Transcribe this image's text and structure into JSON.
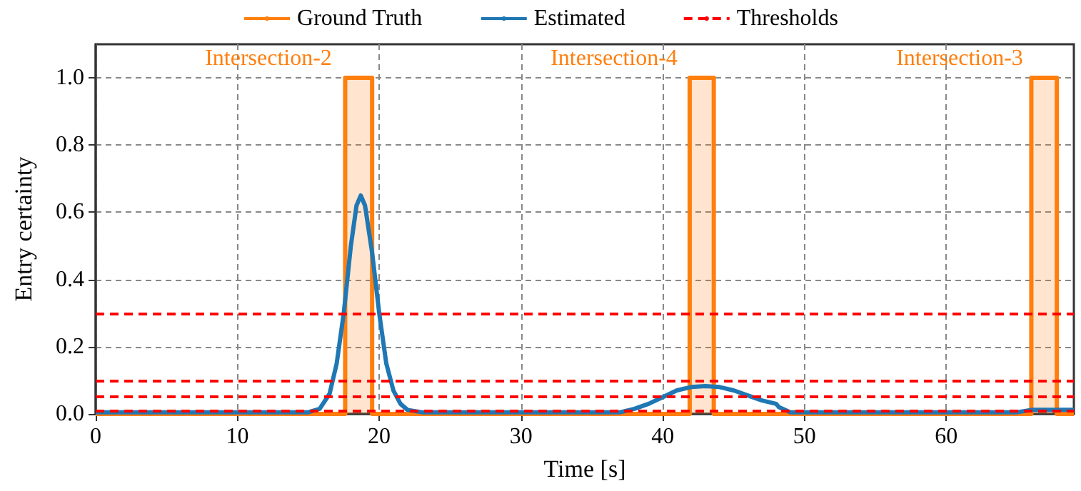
{
  "chart_data": {
    "type": "line",
    "xlabel": "Time [s]",
    "ylabel": "Entry certainty",
    "xlim": [
      0,
      69
    ],
    "xticks": [
      0,
      10,
      20,
      30,
      40,
      50,
      60
    ],
    "ylim": [
      0,
      1.1
    ],
    "yticks": [
      {
        "value": 0,
        "label": "0.0"
      },
      {
        "value": 0.2,
        "label": "0.2"
      },
      {
        "value": 0.4,
        "label": "0.4"
      },
      {
        "value": 0.6,
        "label": "0.6"
      },
      {
        "value": 0.8,
        "label": "0.8"
      },
      {
        "value": 1,
        "label": "1.0"
      }
    ],
    "grid": true,
    "legend": "top",
    "marker": "none",
    "series": [
      {
        "name": "Ground Truth",
        "type": "area",
        "color": "#ff7f0e",
        "x": [
          0,
          17.6,
          17.6,
          19.5,
          19.5,
          41.9,
          41.9,
          43.6,
          43.6,
          66.0,
          66.0,
          67.8,
          67.8,
          69
        ],
        "values": [
          0,
          0,
          1,
          1,
          0,
          0,
          1,
          1,
          0,
          0,
          1,
          1,
          0,
          0
        ]
      },
      {
        "name": "Estimated",
        "color": "#1f77b4",
        "x": [
          0,
          15,
          15.8,
          16.5,
          17,
          17.5,
          18,
          18.4,
          18.7,
          19,
          19.5,
          20,
          20.5,
          21,
          21.5,
          22,
          23,
          37,
          38,
          39,
          40,
          41,
          42,
          43,
          44,
          45,
          46,
          47,
          48,
          48.2,
          49,
          65,
          66,
          69
        ],
        "values": [
          0.005,
          0.005,
          0.015,
          0.06,
          0.15,
          0.3,
          0.5,
          0.62,
          0.65,
          0.62,
          0.48,
          0.3,
          0.15,
          0.07,
          0.03,
          0.012,
          0.005,
          0.005,
          0.015,
          0.03,
          0.05,
          0.07,
          0.08,
          0.083,
          0.08,
          0.07,
          0.055,
          0.04,
          0.03,
          0.02,
          0.005,
          0.005,
          0.012,
          0.012
        ]
      }
    ],
    "ref_lines": [
      {
        "axis": "y",
        "value": 0.3,
        "label": "Thresholds",
        "color": "#ff0000",
        "line_style": "dashed"
      },
      {
        "axis": "y",
        "value": 0.1,
        "color": "#ff0000",
        "line_style": "dashed"
      },
      {
        "axis": "y",
        "value": 0.05,
        "color": "#ff0000",
        "line_style": "dashed"
      },
      {
        "axis": "y",
        "value": 0.01,
        "color": "#ff0000",
        "line_style": "dashed"
      }
    ],
    "annotations": [
      "Intersection-2",
      "Intersection-4",
      "Intersection-3"
    ]
  }
}
